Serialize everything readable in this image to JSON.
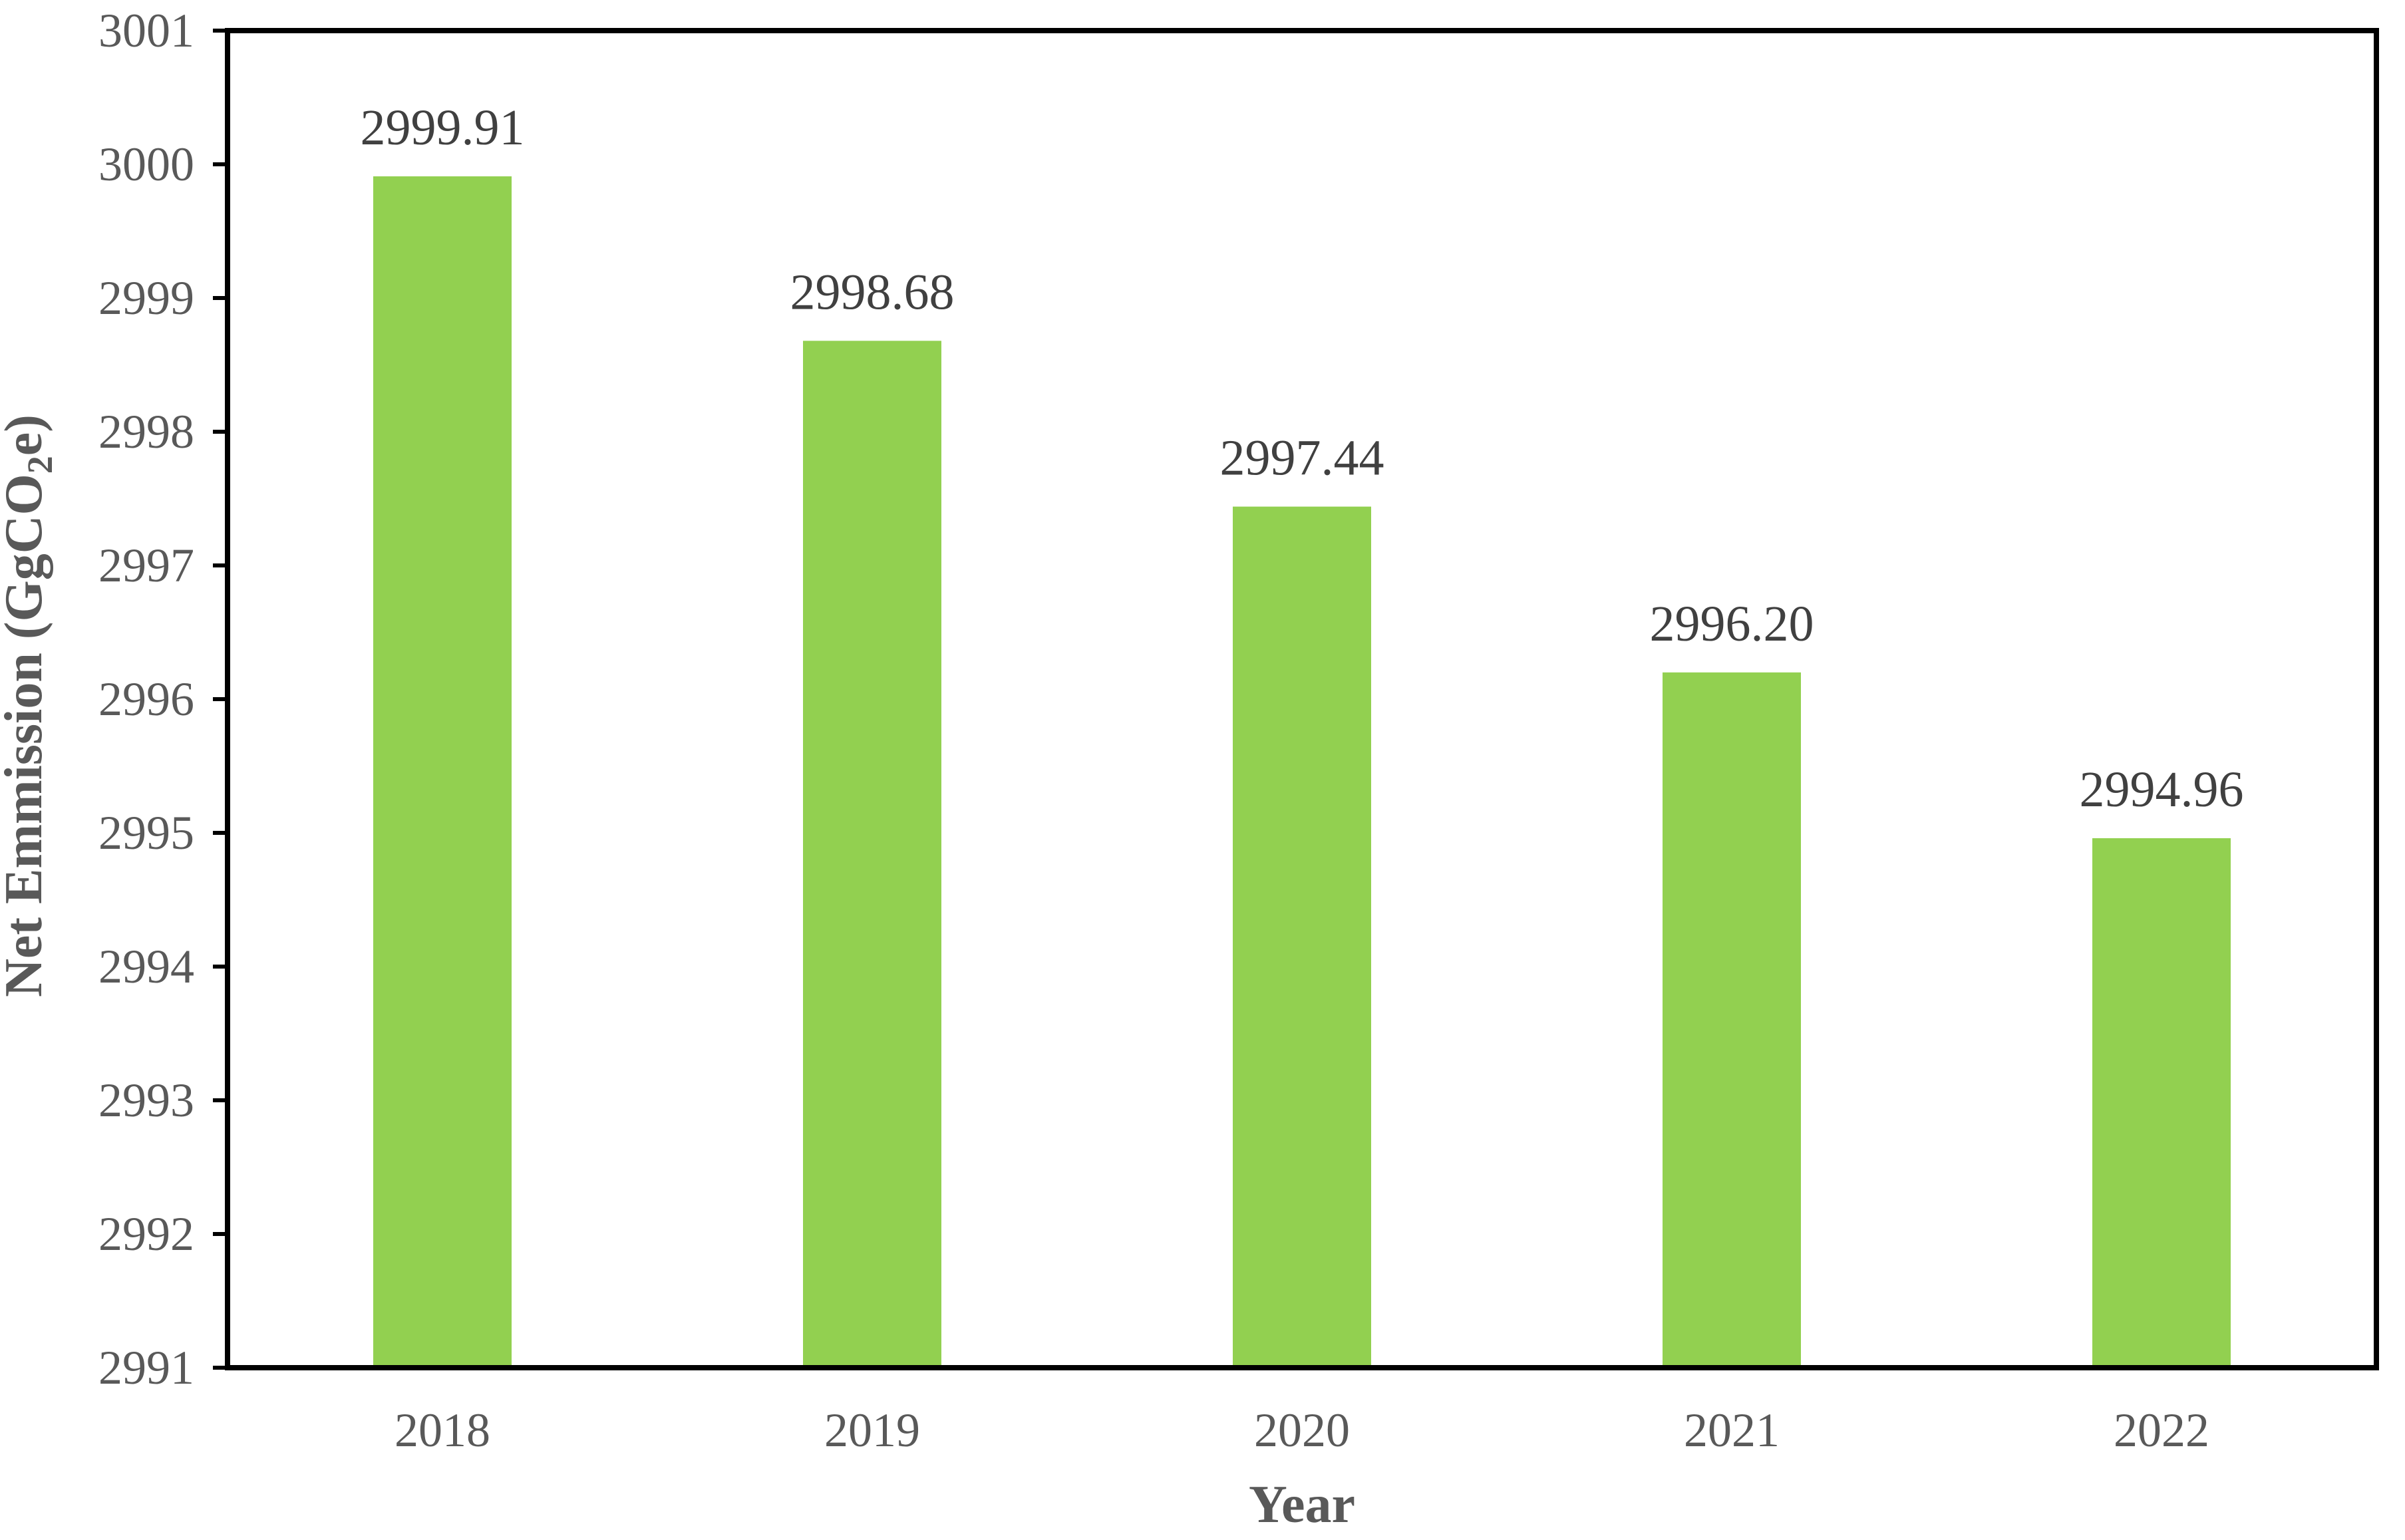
{
  "chart_data": {
    "type": "bar",
    "categories": [
      "2018",
      "2019",
      "2020",
      "2021",
      "2022"
    ],
    "values": [
      2999.91,
      2998.68,
      2997.44,
      2996.2,
      2994.96
    ],
    "data_labels": [
      "2999.91",
      "2998.68",
      "2997.44",
      "2996.20",
      "2994.96"
    ],
    "xlabel": "Year",
    "ylabel": {
      "prefix": "Net Emmission (GgCO",
      "subscript": "2",
      "suffix": "e)"
    },
    "ylim": [
      2991,
      3001
    ],
    "yticks": [
      "2991",
      "2992",
      "2993",
      "2994",
      "2995",
      "2996",
      "2997",
      "2998",
      "2999",
      "3000",
      "3001"
    ],
    "grid": false,
    "legend": "none",
    "bar_color": "#92D050",
    "frame_color": "#000000",
    "text_color": "#595959"
  }
}
